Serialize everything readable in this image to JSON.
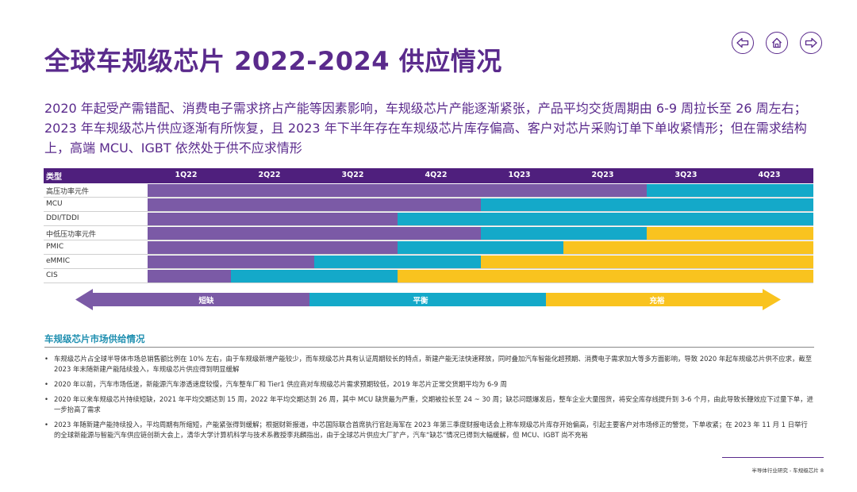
{
  "title": "全球车规级芯片 2022-2024 供应情况",
  "nav": {
    "prev": "left-arrow-icon",
    "home": "home-icon",
    "next": "right-arrow-icon"
  },
  "intro": "2020 年起受产需错配、消费电子需求挤占产能等因素影响，车规级芯片产能逐渐紧张，产品平均交货周期由 6-9 周拉长至 26 周左右；2023 年车规级芯片供应逐渐有所恢复，且 2023 年下半年存在车规级芯片库存偏高、客户对芯片采购订单下单收紧情形；但在需求结构上，高端 MCU、IGBT 依然处于供不应求情形",
  "colors": {
    "shortage": "#7b5aa6",
    "balance": "#14a9c9",
    "surplus": "#f9c31f",
    "header": "#4f1f7d",
    "title": "#5a2a8c"
  },
  "table": {
    "type_header": "类型",
    "quarters": [
      "1Q22",
      "2Q22",
      "3Q22",
      "4Q22",
      "1Q23",
      "2Q23",
      "3Q23",
      "4Q23"
    ],
    "rows": [
      {
        "label": "高压功率元件",
        "shortage": 6,
        "balance": 2,
        "surplus": 0
      },
      {
        "label": "MCU",
        "shortage": 4,
        "balance": 4,
        "surplus": 0
      },
      {
        "label": "DDI/TDDI",
        "shortage": 3,
        "balance": 5,
        "surplus": 0
      },
      {
        "label": "中低压功率元件",
        "shortage": 4,
        "balance": 2,
        "surplus": 2
      },
      {
        "label": "PMIC",
        "shortage": 3,
        "balance": 2,
        "surplus": 3
      },
      {
        "label": "eMMIC",
        "shortage": 2,
        "balance": 2,
        "surplus": 4
      },
      {
        "label": "CIS",
        "shortage": 1,
        "balance": 2,
        "surplus": 5
      }
    ]
  },
  "legend": {
    "shortage": "短缺",
    "balance": "平衡",
    "surplus": "充裕"
  },
  "section_title": "车规级芯片市场供给情况",
  "bullets": [
    "车规级芯片占全球半导体市场总销售额比例在 10% 左右，由于车规级新增产能较少，而车规级芯片具有认证周期较长的特点，新建产能无法快速释放，同时叠加汽车智能化超预期、消费电子需求加大等多方面影响，导致 2020 年起车规级芯片供不应求，截至 2023 年末随新建产能陆续投入，车规级芯片供应得到明显缓解",
    "2020 年以前，汽车市场低迷，新能源汽车渗透速度较慢，汽车整车厂和 Tier1 供应商对车规级芯片需求预期较低，2019 年芯片正常交货期平均为 6-9 周",
    "2020 年以来车规级芯片持续短缺，2021 年平均交期达到 15 周，2022 年平均交期达到 26 周，其中 MCU 缺货最为严重，交期被拉长至 24 ~ 30 周；缺芯问题爆发后，整车企业大量囤货，将安全库存线提升到 3-6 个月，由此导致长鞭效应下过量下单，进一步抬高了需求",
    "2023 年随新建产能持续投入，平均周期有所缩短，产能紧张得到缓解；根据财新报道，中芯国际联合首席执行官赵海军在 2023 年第三季度财报电话会上称车规级芯片库存开始偏高，引起主要客户对市场修正的警觉，下单收紧；在 2023 年 11 月 1 日举行的全球新能源与智能汽车供应链创新大会上，清华大学计算机科学与技术系教授李兆麟指出，由于全球芯片供应大厂扩产，汽车“缺芯”情况已得到大幅缓解，但 MCU、IGBT 尚不充裕"
  ],
  "footer": "半导体行业研究 - 车规级芯片   8"
}
